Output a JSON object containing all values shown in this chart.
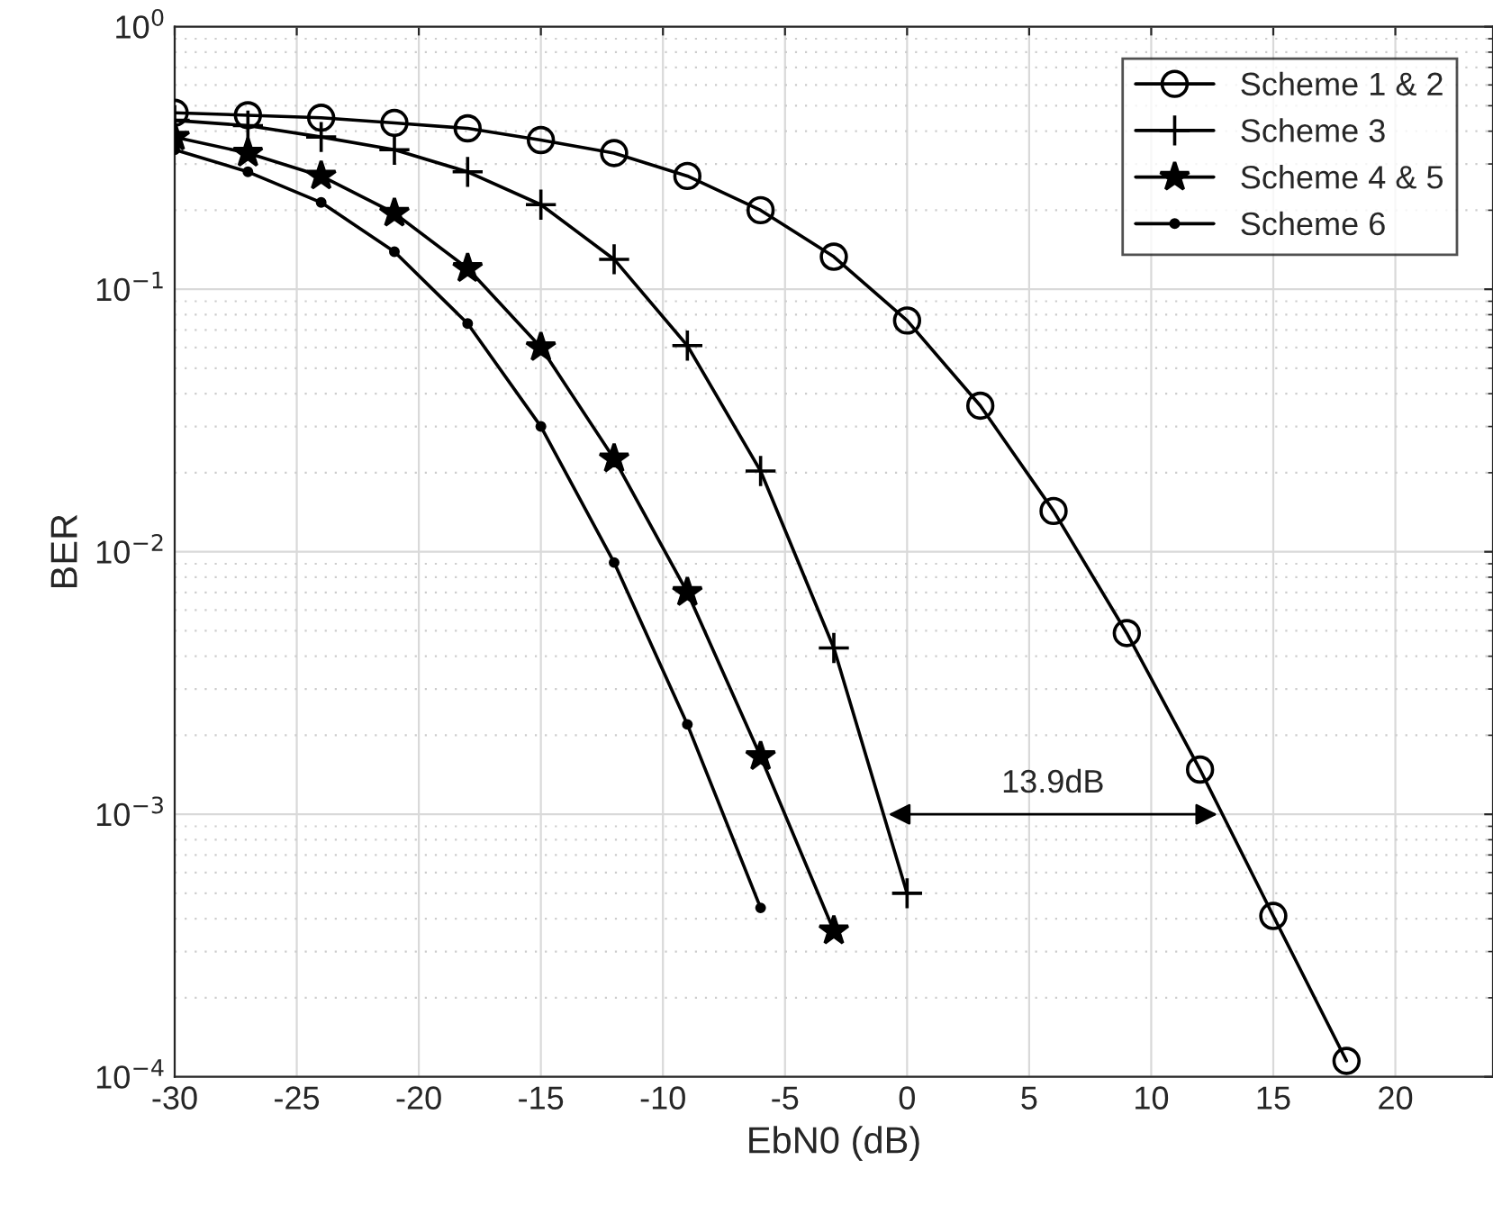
{
  "chart_data": {
    "type": "line",
    "xlabel": "EbN0 (dB)",
    "ylabel": "BER",
    "log": "y",
    "grid": true,
    "legend": "top right",
    "xlim": [
      -30,
      24
    ],
    "xticks": [
      -30,
      -25,
      -20,
      -15,
      -10,
      -5,
      0,
      5,
      10,
      15,
      20
    ],
    "ylim": [
      0.0001,
      1
    ],
    "yticks": [
      {
        "value": 0.0001,
        "label": "10$^{−4}$"
      },
      {
        "value": 0.001,
        "label": "10$^{−3}$"
      },
      {
        "value": 0.01,
        "label": "10$^{−2}$"
      },
      {
        "value": 0.1,
        "label": "10$^{−1}$"
      },
      {
        "value": 1,
        "label": "10$^{0}$"
      }
    ],
    "series": [
      {
        "name": "Scheme 1 & 2",
        "color": "#000000",
        "marker": "circle",
        "x": [
          -30,
          -27,
          -24,
          -21,
          -18,
          -15,
          -12,
          -9,
          -6,
          -3,
          0,
          3,
          6,
          9,
          12,
          15,
          18
        ],
        "values": [
          0.47,
          0.46,
          0.45,
          0.43,
          0.41,
          0.37,
          0.33,
          0.27,
          0.2,
          0.133,
          0.076,
          0.036,
          0.0143,
          0.0049,
          0.00148,
          0.00041,
          0.000115
        ]
      },
      {
        "name": "Scheme 3",
        "color": "#000000",
        "marker": "cross",
        "x": [
          -30,
          -27,
          -24,
          -21,
          -18,
          -15,
          -12,
          -9,
          -6,
          -3,
          0
        ],
        "values": [
          0.44,
          0.42,
          0.38,
          0.34,
          0.28,
          0.21,
          0.13,
          0.061,
          0.0203,
          0.0043,
          0.0005
        ]
      },
      {
        "name": "Scheme 4 & 5",
        "color": "#000000",
        "marker": "star",
        "x": [
          -30,
          -27,
          -24,
          -21,
          -18,
          -15,
          -12,
          -9,
          -6,
          -3
        ],
        "values": [
          0.38,
          0.33,
          0.27,
          0.195,
          0.12,
          0.06,
          0.0226,
          0.007,
          0.00166,
          0.00036
        ]
      },
      {
        "name": "Scheme 6",
        "color": "#000000",
        "marker": "point",
        "x": [
          -30,
          -27,
          -24,
          -21,
          -18,
          -15,
          -12,
          -9,
          -6
        ],
        "values": [
          0.34,
          0.28,
          0.214,
          0.139,
          0.074,
          0.03,
          0.0091,
          0.0022,
          0.00044
        ]
      }
    ],
    "annotations": [
      "13.9dB"
    ]
  }
}
